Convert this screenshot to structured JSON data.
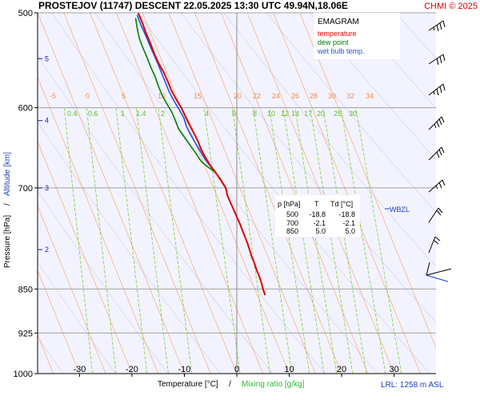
{
  "header": {
    "title": "PROSTEJOV (11747)   DESCENT   22.05.2025 13:30 UTC  49.94N,18.06E",
    "credit": "CHMI © 2025"
  },
  "legend": {
    "title": "EMAGRAM",
    "temperature": "temperature",
    "dew_point": "dew point",
    "wet_bulb": "wet bulb temp."
  },
  "table": {
    "headers": [
      "p [hPa]",
      "T",
      "Td [°C]"
    ],
    "rows": [
      [
        "500",
        "-18.8",
        "-18.8"
      ],
      [
        "700",
        "-2.1",
        "-2.1"
      ],
      [
        "850",
        "5.0",
        "5.0"
      ]
    ]
  },
  "wbzl": "WBZL",
  "lrl": "LRL: 1258 m ASL",
  "colors": {
    "temperature": "#e00000",
    "dew_point": "#008000",
    "wet_bulb": "#2255dd",
    "isotherm_sat": "#f5a875",
    "mixing_ratio": "#7ccf2f",
    "dry_adiabat": "#d6d6ea",
    "grid": "#a0a0a0"
  },
  "chart_data": {
    "type": "line",
    "title": "PROSTEJOV (11747)   DESCENT   22.05.2025 13:30 UTC  49.94N,18.06E",
    "xlabel": "Temperature [°C]",
    "xlabel_sep": "/",
    "xlabel2": "Mixing ratio [g/kg]",
    "ylabel": "Pressure [hPa]",
    "ylabel_sep": "/",
    "ylabel2": "Altitude [km]",
    "xlim": [
      -38,
      38
    ],
    "ylim": [
      1000,
      500
    ],
    "y_scale": "log",
    "x_ticks": [
      -30,
      -20,
      -10,
      0,
      10,
      20,
      30
    ],
    "y_ticks": [
      500,
      600,
      700,
      850,
      925,
      1000
    ],
    "altitude_ticks": [
      {
        "label": "5",
        "p": 546
      },
      {
        "label": "4",
        "p": 615
      },
      {
        "label": "3",
        "p": 700
      },
      {
        "label": "2",
        "p": 788
      }
    ],
    "isotherm_labels": [
      -5,
      0,
      5,
      10,
      15,
      20,
      22,
      24,
      26,
      28,
      30,
      32,
      34
    ],
    "mixing_ratio_labels": [
      "0.4",
      "0.6",
      "1",
      "1.4",
      "2",
      "4",
      "6",
      "8",
      "10",
      "12",
      "14",
      "17",
      "20",
      "25",
      "30"
    ],
    "series": [
      {
        "name": "temperature",
        "points": [
          [
            -18.8,
            500
          ],
          [
            -18.0,
            510
          ],
          [
            -17.3,
            520
          ],
          [
            -16.5,
            530
          ],
          [
            -15.8,
            540
          ],
          [
            -15.0,
            550
          ],
          [
            -14.0,
            560
          ],
          [
            -13.2,
            570
          ],
          [
            -12.5,
            580
          ],
          [
            -11.6,
            590
          ],
          [
            -10.6,
            600
          ],
          [
            -9.8,
            610
          ],
          [
            -9.0,
            620
          ],
          [
            -8.2,
            630
          ],
          [
            -7.4,
            640
          ],
          [
            -6.8,
            650
          ],
          [
            -6.0,
            660
          ],
          [
            -5.1,
            670
          ],
          [
            -4.0,
            680
          ],
          [
            -3.0,
            690
          ],
          [
            -2.1,
            700
          ],
          [
            -1.8,
            710
          ],
          [
            -1.2,
            720
          ],
          [
            -0.6,
            730
          ],
          [
            0.0,
            740
          ],
          [
            0.6,
            750
          ],
          [
            1.1,
            760
          ],
          [
            1.6,
            770
          ],
          [
            2.1,
            780
          ],
          [
            2.5,
            790
          ],
          [
            2.9,
            800
          ],
          [
            3.4,
            810
          ],
          [
            3.8,
            820
          ],
          [
            4.3,
            830
          ],
          [
            4.7,
            840
          ],
          [
            5.0,
            850
          ],
          [
            5.4,
            860
          ]
        ]
      },
      {
        "name": "dew point",
        "points": [
          [
            -19.3,
            505
          ],
          [
            -19.0,
            515
          ],
          [
            -18.6,
            525
          ],
          [
            -17.9,
            535
          ],
          [
            -17.1,
            545
          ],
          [
            -16.4,
            555
          ],
          [
            -15.6,
            565
          ],
          [
            -15.0,
            575
          ],
          [
            -14.3,
            585
          ],
          [
            -13.4,
            595
          ],
          [
            -12.4,
            605
          ],
          [
            -11.7,
            615
          ],
          [
            -11.1,
            625
          ],
          [
            -10.0,
            635
          ],
          [
            -8.9,
            645
          ],
          [
            -7.8,
            655
          ],
          [
            -6.8,
            665
          ],
          [
            -5.6,
            672
          ],
          [
            -4.3,
            678
          ],
          [
            -3.1,
            688
          ],
          [
            -2.1,
            700
          ]
        ]
      },
      {
        "name": "wet bulb temp.",
        "points": [
          [
            -19.0,
            502
          ],
          [
            -18.3,
            512
          ],
          [
            -17.4,
            522
          ],
          [
            -16.6,
            532
          ],
          [
            -15.8,
            542
          ],
          [
            -15.0,
            552
          ],
          [
            -14.3,
            562
          ],
          [
            -13.6,
            572
          ],
          [
            -12.9,
            582
          ],
          [
            -12.0,
            592
          ],
          [
            -11.0,
            602
          ],
          [
            -10.1,
            612
          ],
          [
            -9.6,
            622
          ],
          [
            -8.8,
            632
          ],
          [
            -7.9,
            642
          ],
          [
            -7.0,
            652
          ],
          [
            -6.1,
            662
          ],
          [
            -5.1,
            671
          ],
          [
            -4.1,
            679
          ],
          [
            -3.0,
            690
          ],
          [
            -2.1,
            700
          ]
        ]
      }
    ]
  }
}
